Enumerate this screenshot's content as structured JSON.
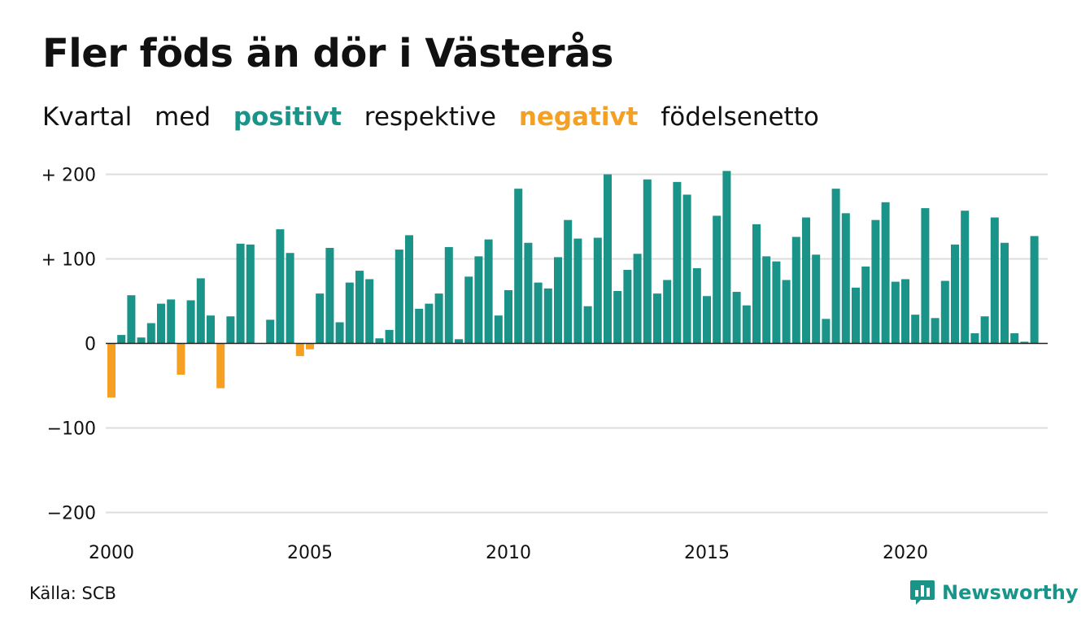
{
  "title": "Fler föds än dör i Västerås",
  "subtitle": {
    "w1": "Kvartal",
    "w2": "med",
    "positive": "positivt",
    "w3": "respektive",
    "negative": "negativt",
    "w4": "födelsenetto"
  },
  "source": "Källa: SCB",
  "brand": "Newsworthy",
  "colors": {
    "positive": "#1a9388",
    "negative": "#f5a023",
    "grid": "#dddddd",
    "zero": "#222222",
    "text": "#111111"
  },
  "icons": {
    "brand_logo": "bar-chart-speech-bubble-icon"
  },
  "chart_data": {
    "type": "bar",
    "title": "Fler föds än dör i Västerås",
    "subtitle": "Kvartal med positivt respektive negativt födelsenetto",
    "x_start": 2000,
    "periods_per_year": 4,
    "xticks": [
      2000,
      2005,
      2010,
      2015,
      2020
    ],
    "xtick_labels": [
      "2000",
      "2005",
      "2010",
      "2015",
      "2020"
    ],
    "ylim": [
      -200,
      200
    ],
    "yticks": [
      200,
      100,
      0,
      -100,
      -200
    ],
    "ytick_labels": [
      "+ 200",
      "+ 100",
      "0",
      "−100",
      "−200"
    ],
    "grid": true,
    "legend": "none",
    "values": [
      -64,
      10,
      57,
      7,
      24,
      47,
      52,
      -37,
      51,
      77,
      33,
      -53,
      32,
      118,
      117,
      0,
      28,
      135,
      107,
      -15,
      -7,
      59,
      113,
      25,
      72,
      86,
      76,
      6,
      16,
      111,
      128,
      41,
      47,
      59,
      114,
      5,
      79,
      103,
      123,
      33,
      63,
      183,
      119,
      72,
      65,
      102,
      146,
      124,
      44,
      125,
      200,
      62,
      87,
      106,
      194,
      59,
      75,
      191,
      176,
      89,
      56,
      151,
      204,
      61,
      45,
      141,
      103,
      97,
      75,
      126,
      149,
      105,
      29,
      183,
      154,
      66,
      91,
      146,
      167,
      73,
      76,
      34,
      160,
      30,
      74,
      117,
      157,
      12,
      32,
      149,
      119,
      12,
      2,
      127
    ]
  }
}
